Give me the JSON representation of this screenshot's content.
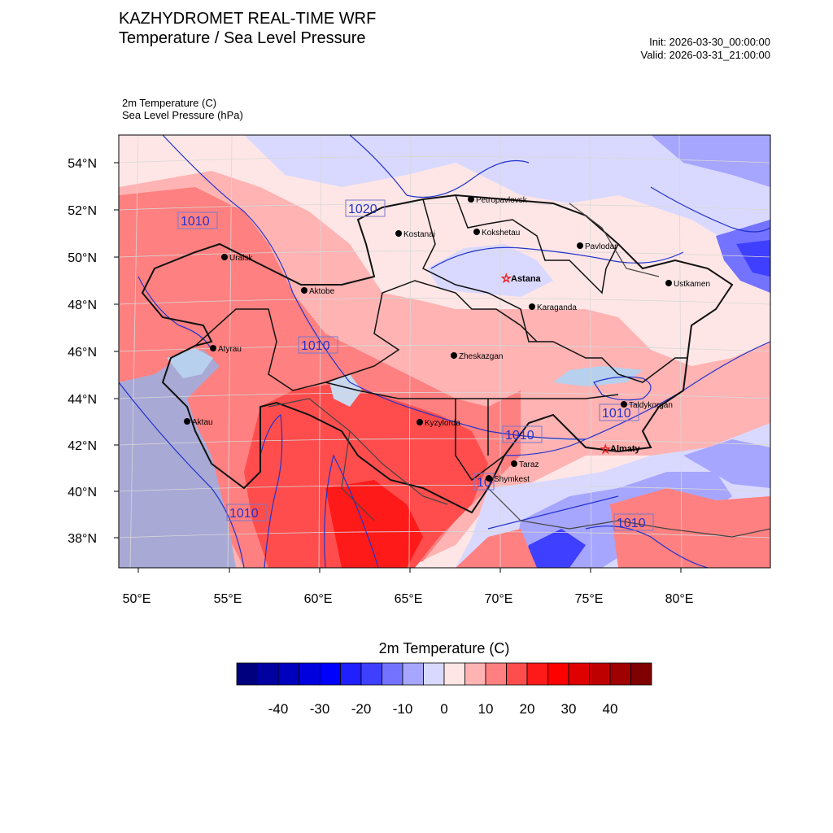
{
  "header": {
    "title_line1": "KAZHYDROMET REAL-TIME WRF",
    "title_line2": "Temperature / Sea Level Pressure",
    "init": "Init: 2026-03-30_00:00:00",
    "valid": "Valid: 2026-03-31_21:00:00",
    "field1": "2m Temperature   (C)",
    "field2": "Sea Level Pressure   (hPa)"
  },
  "axes": {
    "lat_labels": [
      "54°N",
      "52°N",
      "50°N",
      "48°N",
      "46°N",
      "44°N",
      "42°N",
      "40°N",
      "38°N"
    ],
    "lon_labels": [
      "50°E",
      "55°E",
      "60°E",
      "65°E",
      "70°E",
      "75°E",
      "80°E"
    ]
  },
  "cities": [
    {
      "name": "Petropavlovsk",
      "type": "city"
    },
    {
      "name": "Kostanai",
      "type": "city"
    },
    {
      "name": "Kokshetau",
      "type": "city"
    },
    {
      "name": "Pavlodar",
      "type": "city"
    },
    {
      "name": "Uralsk",
      "type": "city"
    },
    {
      "name": "Aktobe",
      "type": "city"
    },
    {
      "name": "Astana",
      "type": "capital"
    },
    {
      "name": "Ustkamen",
      "type": "city"
    },
    {
      "name": "Karaganda",
      "type": "city"
    },
    {
      "name": "Atyrau",
      "type": "city"
    },
    {
      "name": "Zheskazgan",
      "type": "city"
    },
    {
      "name": "Taldykorgan",
      "type": "city"
    },
    {
      "name": "Aktau",
      "type": "city"
    },
    {
      "name": "Kyzylorda",
      "type": "city"
    },
    {
      "name": "Almaty",
      "type": "capital"
    },
    {
      "name": "Taraz",
      "type": "city"
    },
    {
      "name": "Shymkest",
      "type": "city"
    }
  ],
  "isobar_labels": [
    "1010",
    "1020",
    "1010",
    "1010",
    "1010",
    "1010",
    "1010",
    "10",
    "1010"
  ],
  "colorbar": {
    "title": "2m Temperature  (C)",
    "ticks": [
      "-40",
      "-30",
      "-20",
      "-10",
      "0",
      "10",
      "20",
      "30",
      "40"
    ],
    "colors": [
      "#00007f",
      "#00009f",
      "#0000bf",
      "#0000df",
      "#0000ff",
      "#1f1fff",
      "#3f3fff",
      "#7373ff",
      "#a6a6ff",
      "#d9d9ff",
      "#ffe6e6",
      "#ffb3b3",
      "#ff8080",
      "#ff4d4d",
      "#ff1a1a",
      "#ff0000",
      "#df0000",
      "#bf0000",
      "#9f0000",
      "#7f0000"
    ]
  }
}
